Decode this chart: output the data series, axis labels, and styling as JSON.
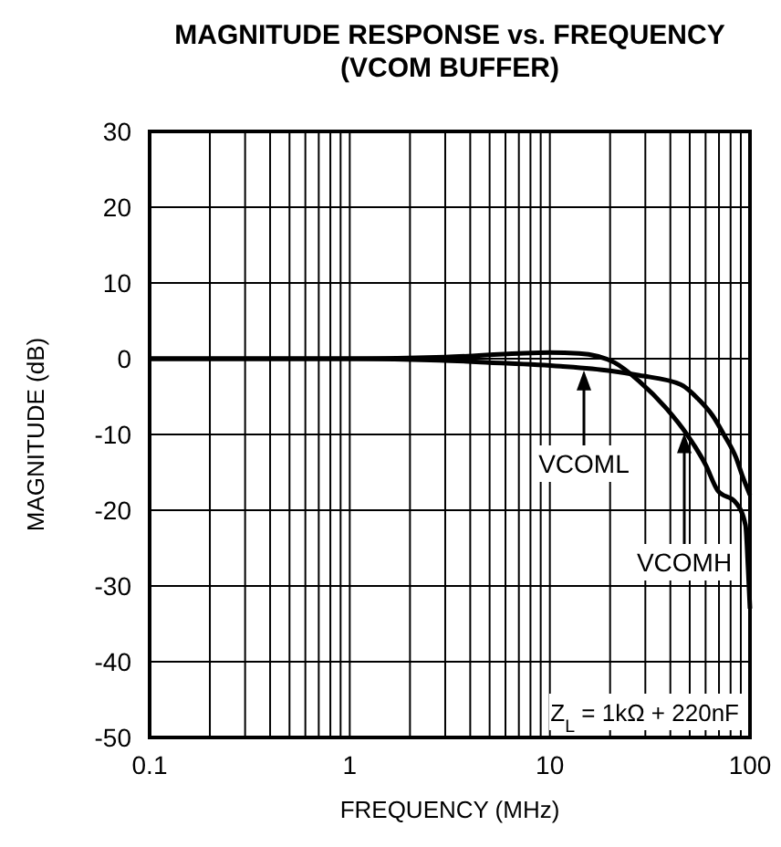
{
  "chart_data": {
    "type": "line",
    "title": "MAGNITUDE RESPONSE vs. FREQUENCY",
    "subtitle": "(VCOM BUFFER)",
    "xlabel": "FREQUENCY (MHz)",
    "ylabel": "MAGNITUDE (dB)",
    "log": "x",
    "grid": true,
    "marker": "none",
    "line_style": "solid",
    "xlim": [
      0.1,
      100
    ],
    "xticks": [
      0.1,
      1,
      10,
      100
    ],
    "ylim": [
      -50,
      30
    ],
    "yticks": [
      -50,
      -40,
      -30,
      -20,
      -10,
      0,
      10,
      20,
      30
    ],
    "series": [
      {
        "name": "VCOML",
        "color": "#000000",
        "x": [
          0.1,
          1,
          2.8,
          5,
          11.3,
          20,
          28,
          45,
          56,
          65,
          74,
          85,
          92,
          100
        ],
        "values": [
          0,
          0,
          -0.2,
          -0.5,
          -1,
          -1.6,
          -2.2,
          -3.4,
          -5.5,
          -7.5,
          -10,
          -13,
          -15.6,
          -18
        ]
      },
      {
        "name": "VCOMH",
        "color": "#000000",
        "x": [
          0.1,
          1,
          3,
          7,
          10,
          14,
          21,
          28,
          38,
          49,
          60,
          69,
          85,
          95,
          98,
          100
        ],
        "values": [
          0,
          0,
          0.2,
          0.7,
          0.8,
          0.7,
          -0.5,
          -3,
          -6.5,
          -10.2,
          -14,
          -17.4,
          -19,
          -22,
          -28,
          -33
        ]
      }
    ],
    "annotations": [
      "Z$_{L}$ = 1kΩ + 220nF"
    ]
  }
}
